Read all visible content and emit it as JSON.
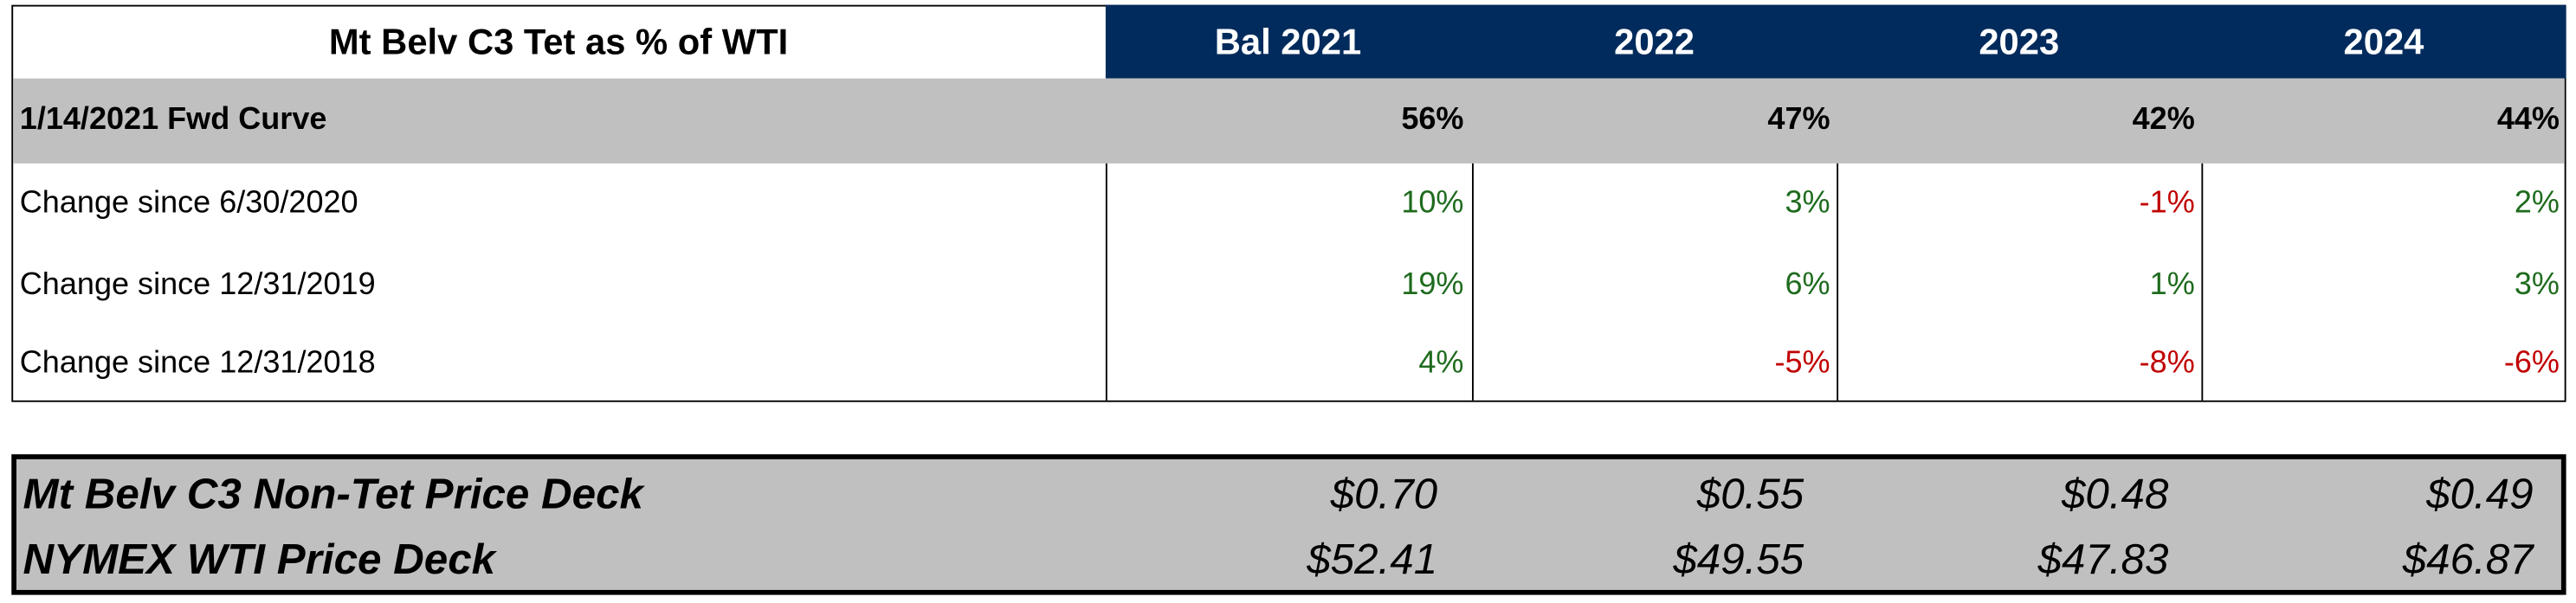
{
  "table": {
    "title": "Mt Belv C3 Tet as % of WTI",
    "columns": [
      "Bal 2021",
      "2022",
      "2023",
      "2024"
    ],
    "rows": [
      {
        "label": "1/14/2021 Fwd Curve",
        "values": [
          "56%",
          "47%",
          "42%",
          "44%"
        ]
      },
      {
        "label": "Change since 6/30/2020",
        "values": [
          "10%",
          "3%",
          "-1%",
          "2%"
        ]
      },
      {
        "label": "Change since 12/31/2019",
        "values": [
          "19%",
          "6%",
          "1%",
          "3%"
        ]
      },
      {
        "label": "Change since 12/31/2018",
        "values": [
          "4%",
          "-5%",
          "-8%",
          "-6%"
        ]
      }
    ]
  },
  "price_deck": {
    "rows": [
      {
        "label": "Mt Belv C3 Non-Tet Price Deck",
        "values": [
          "$0.70",
          "$0.55",
          "$0.48",
          "$0.49"
        ]
      },
      {
        "label": "NYMEX WTI Price Deck",
        "values": [
          "$52.41",
          "$49.55",
          "$47.83",
          "$46.87"
        ]
      }
    ]
  }
}
